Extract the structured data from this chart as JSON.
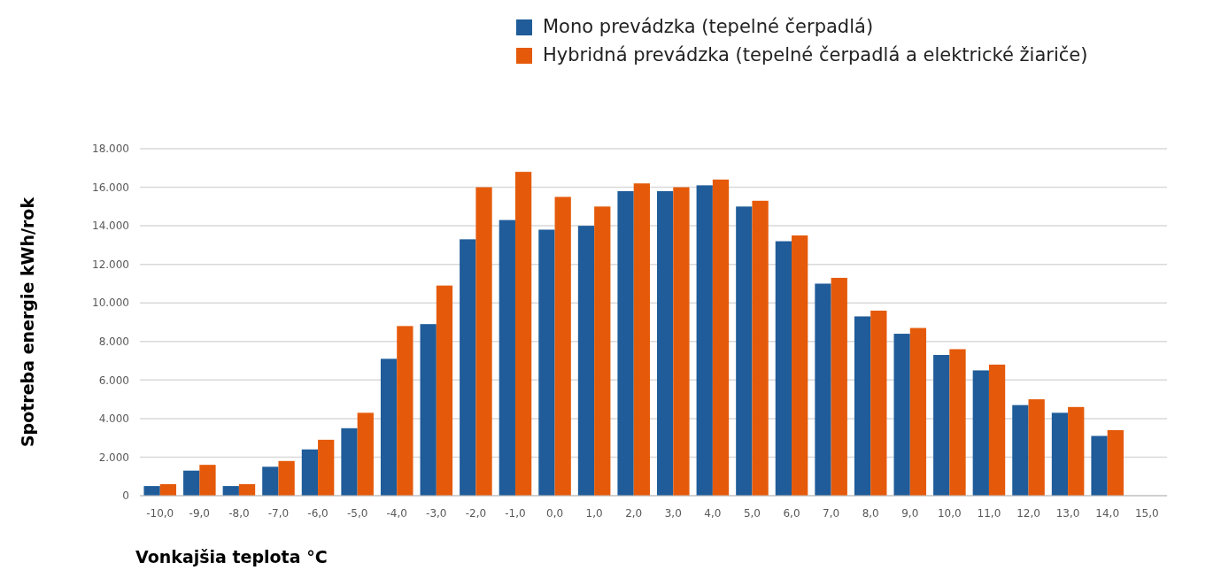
{
  "chart_data": {
    "type": "bar",
    "xlabel": "Vonkajšia teplota °C",
    "ylabel": "Spotreba energie kWh/rok",
    "categories": [
      "-10,0",
      "-9,0",
      "-8,0",
      "-7,0",
      "-6,0",
      "-5,0",
      "-4,0",
      "-3,0",
      "-2,0",
      "-1,0",
      "0,0",
      "1,0",
      "2,0",
      "3,0",
      "4,0",
      "5,0",
      "6,0",
      "7,0",
      "8,0",
      "9,0",
      "10,0",
      "11,0",
      "12,0",
      "13,0",
      "14,0",
      "15,0"
    ],
    "series": [
      {
        "name": "Mono prevádzka (tepelné čerpadlá)",
        "color": "#1f5c99",
        "values": [
          500,
          1300,
          500,
          1500,
          2400,
          3500,
          7100,
          8900,
          13300,
          14300,
          13800,
          14000,
          15800,
          15800,
          16100,
          15000,
          13200,
          11000,
          9300,
          8400,
          7300,
          6500,
          4700,
          4300,
          3100,
          0
        ]
      },
      {
        "name": "Hybridná prevádzka (tepelné čerpadlá a elektrické žiariče)",
        "color": "#e55a0a",
        "values": [
          600,
          1600,
          600,
          1800,
          2900,
          4300,
          8800,
          10900,
          16000,
          16800,
          15500,
          15000,
          16200,
          16000,
          16400,
          15300,
          13500,
          11300,
          9600,
          8700,
          7600,
          6800,
          5000,
          4600,
          3400,
          0
        ]
      }
    ],
    "ylim": [
      0,
      18000
    ],
    "yticks": [
      0,
      {
        "value": 2000,
        "label": "2.000"
      },
      {
        "value": 4000,
        "label": "4.000"
      },
      {
        "value": 6000,
        "label": "6.000"
      },
      {
        "value": 8000,
        "label": "8.000"
      },
      {
        "value": 10000,
        "label": "10.000"
      },
      {
        "value": 12000,
        "label": "12.000"
      },
      {
        "value": 14000,
        "label": "14.000"
      },
      {
        "value": 16000,
        "label": "16.000"
      },
      {
        "value": 18000,
        "label": "18.000"
      }
    ],
    "grid": "y",
    "legend": "top right"
  }
}
